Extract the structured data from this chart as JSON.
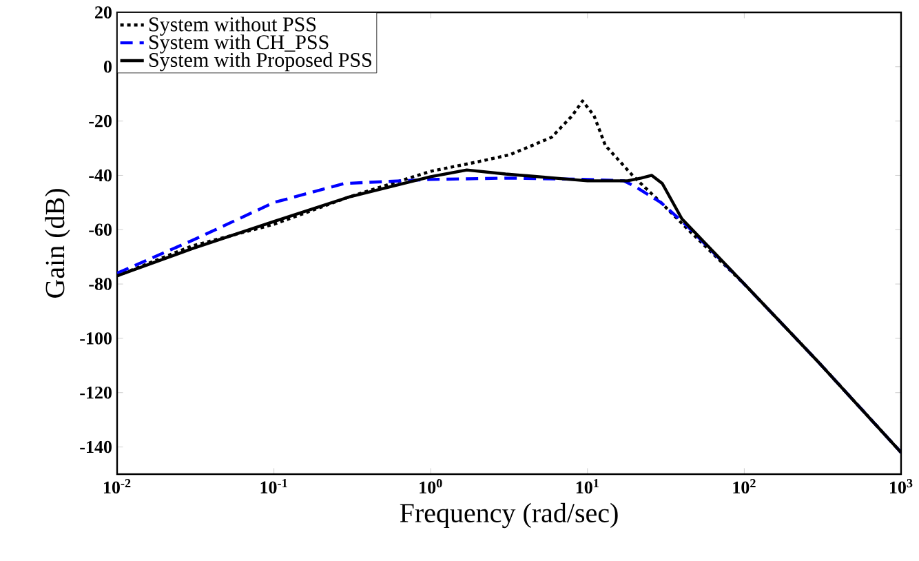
{
  "chart_data": {
    "type": "line",
    "xlabel": "Frequency (rad/sec)",
    "ylabel": "Gain (dB)",
    "log": "x",
    "legend": "top left",
    "grid": false,
    "xlim": [
      0.01,
      1000
    ],
    "ylim": [
      -150,
      20
    ],
    "xticks": [
      {
        "value": 0.01,
        "label": "10$^{-2}$"
      },
      {
        "value": 0.1,
        "label": "10$^{-1}$"
      },
      {
        "value": 1,
        "label": "10$^{0}$"
      },
      {
        "value": 10,
        "label": "10$^{1}$"
      },
      {
        "value": 100,
        "label": "10$^{2}$"
      },
      {
        "value": 1000,
        "label": "10$^{3}$"
      }
    ],
    "yticks": [
      20,
      0,
      -20,
      -40,
      -60,
      -80,
      -100,
      -120,
      -140
    ],
    "series": [
      {
        "name": "System without PSS",
        "color": "#000000",
        "line_style": "dotted",
        "x": [
          0.01,
          0.03,
          0.1,
          0.3,
          1,
          2,
          3.2,
          5.9,
          8,
          9.3,
          11,
          13,
          19.8,
          29.4,
          43.9,
          100,
          300,
          1000
        ],
        "values": [
          -77,
          -66,
          -58,
          -48,
          -38.5,
          -35,
          -32.4,
          -26,
          -18,
          -12.6,
          -18,
          -29,
          -40.6,
          -50,
          -60,
          -80,
          -109,
          -142
        ]
      },
      {
        "name": "System with CH_PSS",
        "color": "#0000ff",
        "line_style": "dashed",
        "x": [
          0.01,
          0.03,
          0.1,
          0.28,
          1,
          3,
          10,
          17,
          20,
          29.4,
          43.9,
          100,
          300,
          1000
        ],
        "values": [
          -76,
          -64,
          -50,
          -43,
          -41.5,
          -41,
          -41.5,
          -42,
          -44,
          -50,
          -59,
          -80,
          -109,
          -142
        ]
      },
      {
        "name": "System with Proposed PSS",
        "color": "#000000",
        "line_style": "solid",
        "x": [
          0.01,
          0.03,
          0.1,
          0.3,
          1,
          1.7,
          3,
          10,
          18,
          22,
          25.7,
          30,
          40,
          100,
          300,
          1000
        ],
        "values": [
          -77,
          -67,
          -57,
          -48,
          -40.5,
          -38,
          -39.5,
          -42,
          -42,
          -41,
          -40,
          -43,
          -56,
          -80,
          -109,
          -142
        ]
      }
    ]
  }
}
